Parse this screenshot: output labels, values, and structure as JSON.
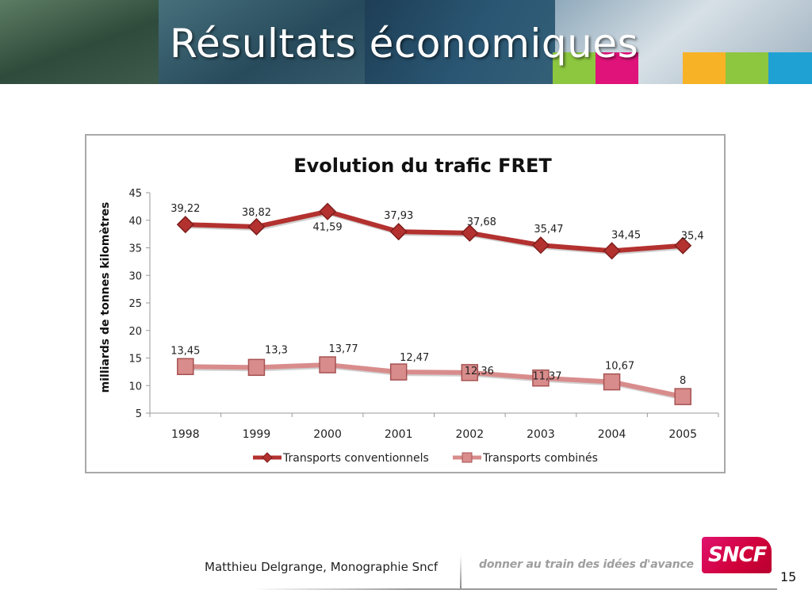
{
  "slide": {
    "title": "Résultats économiques",
    "author": "Matthieu Delgrange, Monographie Sncf",
    "slogan": "donner au train des idées d'avance",
    "logo_text": "SNCF",
    "page_number": "15",
    "accent_blocks": [
      "#8dc63f",
      "#e0137a",
      "#f7b226",
      "#8dc63f",
      "#1fa1d4"
    ]
  },
  "chart_data": {
    "type": "line",
    "title": "Evolution du trafic FRET",
    "ylabel": "milliards de tonnes kilomètres",
    "xlabel": "",
    "ylim": [
      5,
      45
    ],
    "yticks": [
      "5",
      "10",
      "15",
      "20",
      "25",
      "30",
      "35",
      "40",
      "45"
    ],
    "categories": [
      "1998",
      "1999",
      "2000",
      "2001",
      "2002",
      "2003",
      "2004",
      "2005"
    ],
    "legend_position": "bottom",
    "series": [
      {
        "name": "Transports conventionnels",
        "values": [
          39.22,
          38.82,
          41.59,
          37.93,
          37.68,
          35.47,
          34.45,
          35.4
        ],
        "labels": [
          "39,22",
          "38,82",
          "41,59",
          "37,93",
          "37,68",
          "35,47",
          "34,45",
          "35,4"
        ],
        "color": "#b3312f",
        "marker": "diamond"
      },
      {
        "name": "Transports combinés",
        "values": [
          13.45,
          13.3,
          13.77,
          12.47,
          12.36,
          11.37,
          10.67,
          8
        ],
        "labels": [
          "13,45",
          "13,3",
          "13,77",
          "12,47",
          "12,36",
          "11,37",
          "10,67",
          "8"
        ],
        "color": "#d98c8c",
        "marker": "square"
      }
    ]
  }
}
